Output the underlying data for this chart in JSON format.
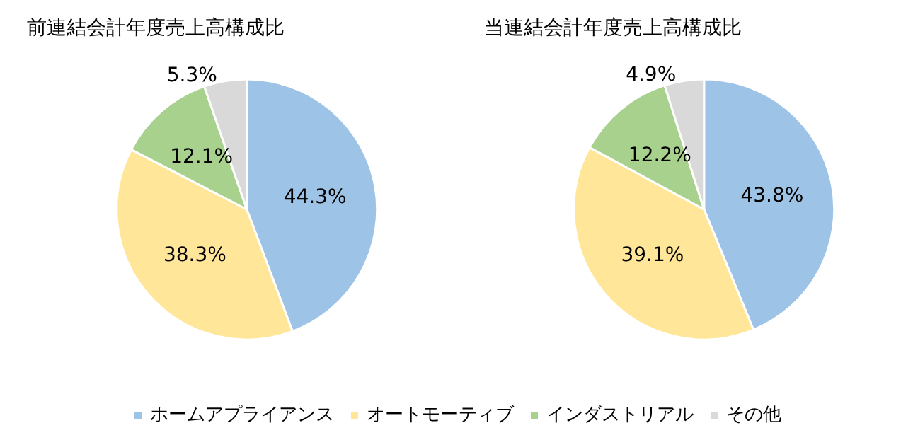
{
  "chart_data": [
    {
      "type": "pie",
      "title": "前連結会計年度売上高構成比",
      "categories": [
        "ホームアプライアンス",
        "オートモーティブ",
        "インダストリアル",
        "その他"
      ],
      "values": [
        44.3,
        38.3,
        12.1,
        5.3
      ],
      "value_labels": [
        "44.3%",
        "38.3%",
        "12.1%",
        "5.3%"
      ],
      "colors": [
        "#9dc3e6",
        "#ffe699",
        "#a9d18e",
        "#d9d9d9"
      ],
      "legend": "bottom"
    },
    {
      "type": "pie",
      "title": "当連結会計年度売上高構成比",
      "categories": [
        null,
        null,
        null,
        null
      ],
      "values": [
        43.8,
        39.1,
        12.2,
        4.9
      ],
      "value_labels": [
        "43.8%",
        "39.1%",
        "12.2%",
        "4.9%"
      ],
      "colors": [
        "#9dc3e6",
        "#ffe699",
        "#a9d18e",
        "#d9d9d9"
      ]
    }
  ]
}
